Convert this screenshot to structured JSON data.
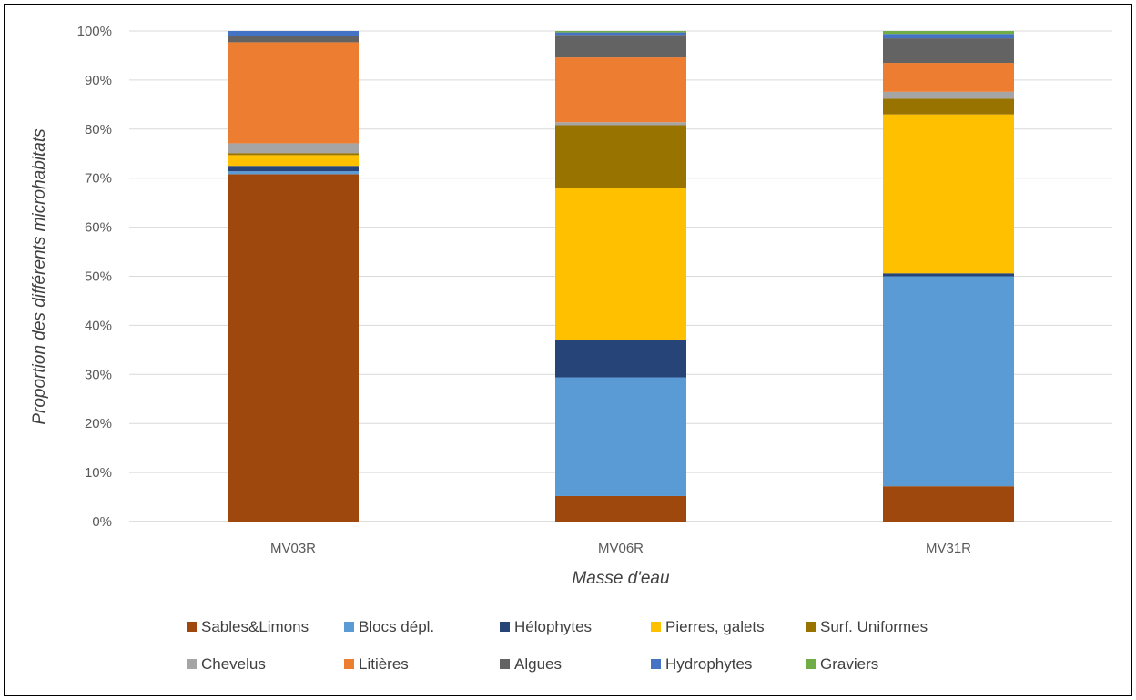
{
  "chart_data": {
    "type": "bar",
    "stacked": true,
    "percent": true,
    "title": "",
    "xlabel": "Masse d'eau",
    "ylabel": "Proportion des différents microhabitats",
    "ylim": [
      0,
      100
    ],
    "yticks": [
      "0%",
      "10%",
      "20%",
      "30%",
      "40%",
      "50%",
      "60%",
      "70%",
      "80%",
      "90%",
      "100%"
    ],
    "grid": true,
    "legend_position": "bottom",
    "categories": [
      "MV03R",
      "MV06R",
      "MV31R"
    ],
    "series": [
      {
        "name": "Sables&Limons",
        "color": "#9E480E",
        "values": [
          70.8,
          5.2,
          7.2
        ]
      },
      {
        "name": "Blocs dépl.",
        "color": "#5B9BD5",
        "values": [
          0.6,
          24.2,
          42.8
        ]
      },
      {
        "name": "Hélophytes",
        "color": "#264478",
        "values": [
          1.1,
          7.6,
          0.6
        ]
      },
      {
        "name": "Pierres, galets",
        "color": "#FFC000",
        "values": [
          2.2,
          30.9,
          32.4
        ]
      },
      {
        "name": "Surf. Uniformes",
        "color": "#997300",
        "values": [
          0.4,
          12.9,
          3.2
        ]
      },
      {
        "name": "Chevelus",
        "color": "#A5A5A5",
        "values": [
          2.0,
          0.6,
          1.4
        ]
      },
      {
        "name": "Litières",
        "color": "#ED7D31",
        "values": [
          20.6,
          13.2,
          5.9
        ]
      },
      {
        "name": "Algues",
        "color": "#636363",
        "values": [
          1.2,
          4.6,
          5.0
        ]
      },
      {
        "name": "Hydrophytes",
        "color": "#4472C4",
        "values": [
          1.1,
          0.5,
          0.9
        ]
      },
      {
        "name": "Graviers",
        "color": "#70AD47",
        "values": [
          0,
          0.3,
          0.6
        ]
      }
    ]
  }
}
